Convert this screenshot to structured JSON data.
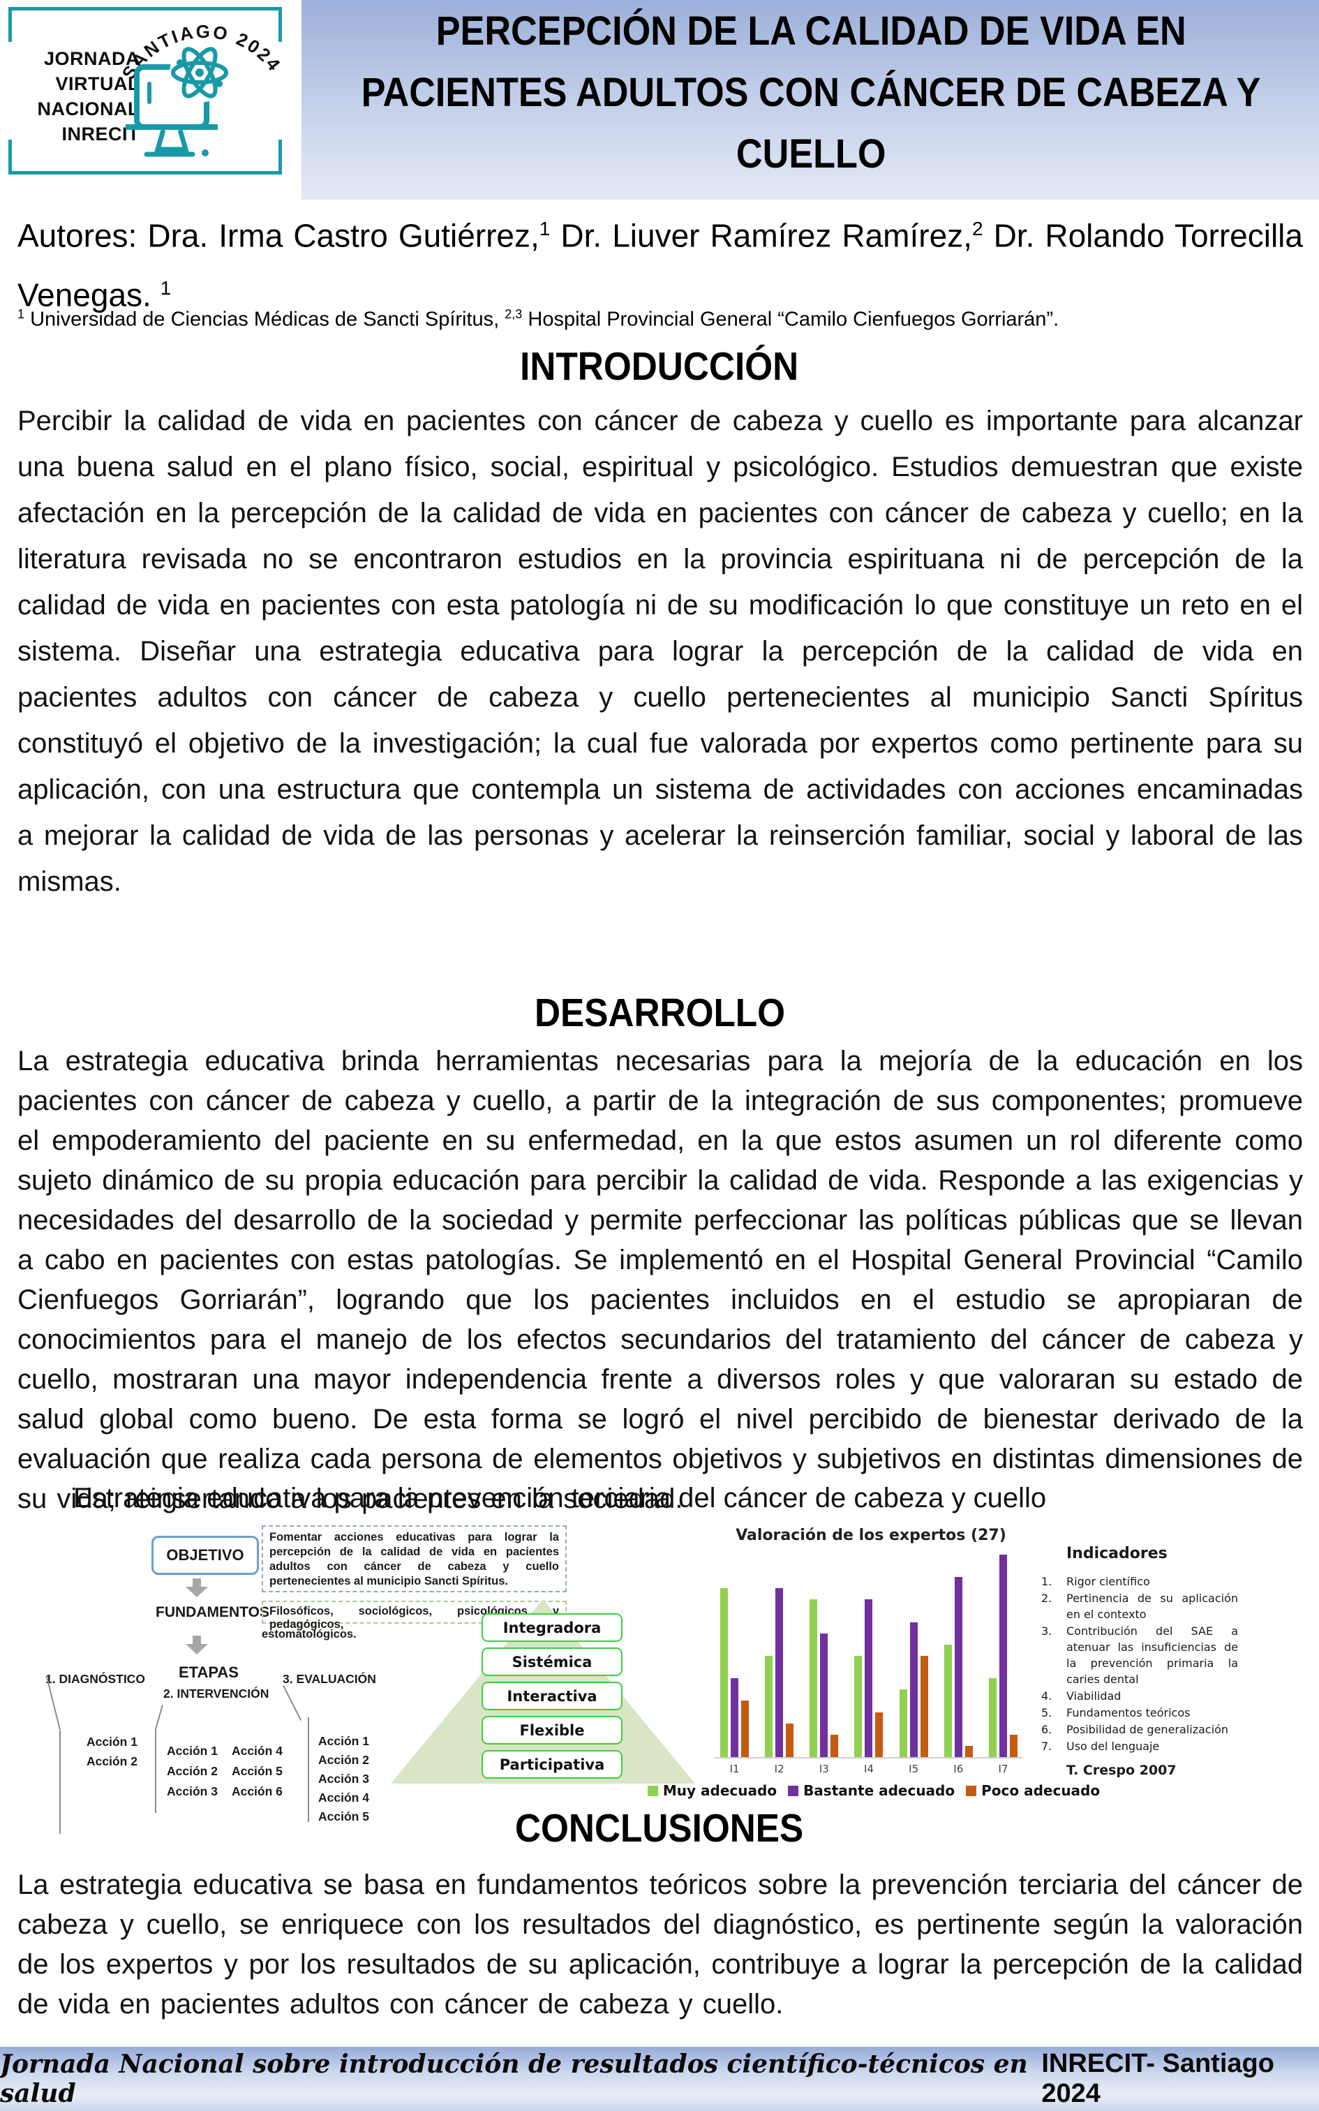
{
  "palette": {
    "teal": "#1899a8",
    "title_grad_top": "#9db0da",
    "title_grad_bottom": "#e3e9f5",
    "footer_grad_top": "#96abd8",
    "footer_grad_bottom": "#cbd7ed",
    "obj_border": "#6d9fcb",
    "blue_dash": "#8fa9c8",
    "green_dash": "#a9c98b",
    "pyramid_fill": "#d9e5c4",
    "pyr_border": "#39d039",
    "arrow_gray": "#a6a6a6",
    "line_gray": "#8c8c8c"
  },
  "header": {
    "logo": {
      "lines": [
        "JORNADA",
        "VIRTUAL",
        "NACIONAL",
        "INRECIT"
      ],
      "arc_text": "SANTIAGO 2024"
    },
    "title_lines": [
      "PERCEPCIÓN DE LA CALIDAD DE VIDA EN",
      "PACIENTES ADULTOS CON CÁNCER DE CABEZA Y",
      "CUELLO"
    ]
  },
  "authors": {
    "segments": [
      {
        "text": "Autores: Dra. Irma Castro Gutiérrez,",
        "sup": false
      },
      {
        "text": "1",
        "sup": true
      },
      {
        "text": " Dr. Liuver Ramírez Ramírez,",
        "sup": false
      },
      {
        "text": "2",
        "sup": true
      },
      {
        "text": " Dr. Rolando Torrecilla Venegas. ",
        "sup": false
      },
      {
        "text": "1",
        "sup": true
      }
    ],
    "affiliation_segments": [
      {
        "text": "1",
        "sup": true
      },
      {
        "text": " Universidad de Ciencias Médicas de Sancti Spíritus, ",
        "sup": false
      },
      {
        "text": "2,3",
        "sup": true
      },
      {
        "text": " Hospital Provincial General “Camilo Cienfuegos Gorriarán”.",
        "sup": false
      }
    ]
  },
  "sections": {
    "introduction": {
      "heading": "INTRODUCCIÓN",
      "body": "Percibir la calidad de vida en pacientes con cáncer de cabeza y cuello es importante para alcanzar una buena salud en el plano físico, social, espiritual y psicológico. Estudios demuestran que existe afectación en la percepción de la calidad de vida en pacientes con cáncer de cabeza y cuello; en la literatura revisada no se encontraron estudios en la provincia espirituana ni de percepción de la calidad de vida en pacientes con esta patología ni de su modificación lo que constituye un reto en el sistema. Diseñar una estrategia educativa para lograr la percepción de la calidad de vida en pacientes adultos con cáncer de cabeza y cuello pertenecientes al municipio Sancti Spíritus constituyó el objetivo de la investigación; la cual fue valorada por expertos como pertinente para su aplicación, con una estructura que contempla un sistema de actividades con acciones encaminadas a mejorar la calidad de vida de las personas y acelerar la reinserción familiar, social y laboral de las mismas."
    },
    "development": {
      "heading": "DESARROLLO",
      "body": "La estrategia educativa brinda herramientas necesarias para la mejoría de la educación en los pacientes con cáncer de cabeza y cuello, a partir de la integración de sus componentes; promueve el empoderamiento del paciente en su enfermedad, en la que estos asumen un rol diferente como sujeto dinámico de su propia educación para percibir la calidad de vida. Responde a las exigencias y necesidades del desarrollo de la sociedad y permite perfeccionar las políticas públicas que se llevan a cabo en pacientes con estas patologías. Se implementó en el Hospital General Provincial “Camilo Cienfuegos Gorriarán”, logrando que los pacientes incluidos en el estudio se apropiaran de conocimientos para el manejo de los efectos secundarios del tratamiento del cáncer de cabeza y cuello, mostraran una mayor independencia frente a diversos roles y que valoraran su estado de salud global como bueno. De esta forma se logró el nivel percibido de bienestar derivado de la evaluación que realiza cada persona de elementos objetivos y subjetivos en distintas dimensiones de su vida; reinsertando a los pacientes en la sociedad."
    },
    "conclusions": {
      "heading": "CONCLUSIONES",
      "body": "La estrategia educativa se basa en fundamentos teóricos sobre la prevención terciaria del cáncer de cabeza y cuello, se enriquece con los resultados del diagnóstico, es pertinente según la valoración de los expertos y por los resultados de su aplicación, contribuye a lograr la percepción de la calidad de vida en pacientes adultos con cáncer de cabeza y cuello."
    }
  },
  "figure": {
    "caption": "Estrategia educativa para la prevención terciaria del cáncer de cabeza y cuello",
    "diagram": {
      "objective_label": "OBJETIVO",
      "objective_text": "Fomentar acciones educativas para lograr la percepción de la calidad de vida en pacientes adultos con cáncer de cabeza y cuello pertenecientes al municipio Sancti Spíritus.",
      "foundations_label": "FUNDAMENTOS",
      "foundations_text": "Filosóficos, sociológicos, psicológicos y pedagógicos,",
      "foundations_text2": "estomatológicos.",
      "stages_label": "ETAPAS",
      "stages": [
        {
          "label": "1. DIAGNÓSTICO",
          "actions": [
            "Acción 1",
            "Acción 2"
          ]
        },
        {
          "label": "2. INTERVENCIÓN",
          "actions": [
            "Acción 1",
            "Acción 2",
            "Acción 3",
            "Acción 4",
            "Acción 5",
            "Acción 6"
          ]
        },
        {
          "label": "3. EVALUACIÓN",
          "actions": [
            "Acción 1",
            "Acción 2",
            "Acción 3",
            "Acción 4",
            "Acción 5"
          ]
        }
      ],
      "pyramid_labels": [
        "Integradora",
        "Sistémica",
        "Interactiva",
        "Flexible",
        "Participativa"
      ]
    },
    "indicators": {
      "heading": "Indicadores",
      "items": [
        "Rigor científico",
        "Pertinencia de su aplicación en el contexto",
        "Contribución del SAE a atenuar las insuficiencias de la prevención primaria la caries dental",
        "Viabilidad",
        "Fundamentos teóricos",
        "Posibilidad de generalización",
        "Uso del lenguaje"
      ],
      "source": "T. Crespo 2007"
    }
  },
  "chart_data": {
    "type": "bar",
    "title": "Valoración de los expertos (27)",
    "categories": [
      "I1",
      "I2",
      "I3",
      "I4",
      "I5",
      "I6",
      "I7"
    ],
    "series": [
      {
        "name": "Muy adecuado",
        "color": "#92d050",
        "values": [
          15,
          9,
          14,
          9,
          6,
          10,
          7
        ]
      },
      {
        "name": "Bastante adecuado",
        "color": "#7030a0",
        "values": [
          7,
          15,
          11,
          14,
          12,
          16,
          18
        ]
      },
      {
        "name": "Poco adecuado",
        "color": "#c55a11",
        "values": [
          5,
          3,
          2,
          4,
          9,
          1,
          2
        ]
      }
    ],
    "xlabel": "",
    "ylabel": "",
    "ylim": [
      0,
      18
    ],
    "grid": false,
    "legend_position": "bottom"
  },
  "footer": {
    "text_script": "Jornada Nacional sobre introducción de resultados científico-técnicos en salud",
    "text_plain": "INRECIT- Santiago 2024"
  }
}
